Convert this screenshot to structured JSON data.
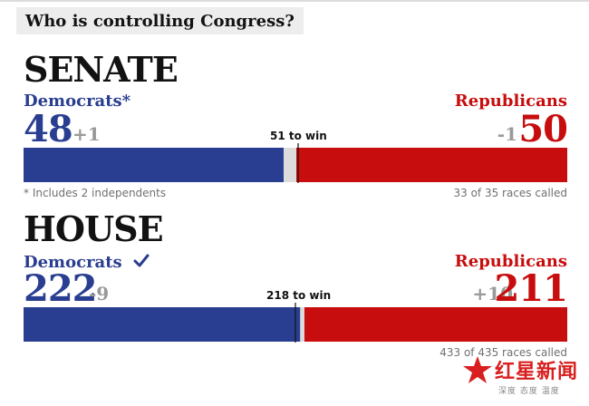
{
  "header": {
    "title": "Who is controlling Congress?",
    "top_fragment": "··· ·"
  },
  "colors": {
    "democrat": "#2a3e91",
    "republican": "#c70d0d",
    "neutral": "#dcdcdc",
    "change": "#999999"
  },
  "chart_data": [
    {
      "type": "bar",
      "title": "SENATE",
      "total_seats": 100,
      "democrats": {
        "label": "Democrats*",
        "seats": 48,
        "change": "+1"
      },
      "republicans": {
        "label": "Republicans",
        "seats": 50,
        "change": "-1"
      },
      "majority": {
        "seats": 51,
        "label": "51 to win"
      },
      "footnote": "* Includes 2 independents",
      "races_called": "33 of 35 races called"
    },
    {
      "type": "bar",
      "title": "HOUSE",
      "total_seats": 435,
      "democrats": {
        "label": "Democrats",
        "seats": 222,
        "change": "-9",
        "winner_icon": "check-icon"
      },
      "republicans": {
        "label": "Republicans",
        "seats": 211,
        "change": "+10"
      },
      "majority": {
        "seats": 218,
        "label": "218 to win"
      },
      "races_called": "433 of 435 races called"
    }
  ],
  "watermark": {
    "brand": "红星新闻",
    "tagline": "深度 态度 温度"
  }
}
